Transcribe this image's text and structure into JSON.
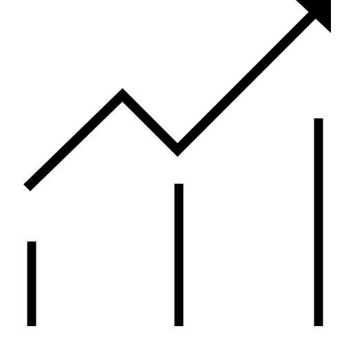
{
  "icon": {
    "name": "growth-chart-icon",
    "stroke_color": "#000000",
    "background_color": "#ffffff"
  }
}
